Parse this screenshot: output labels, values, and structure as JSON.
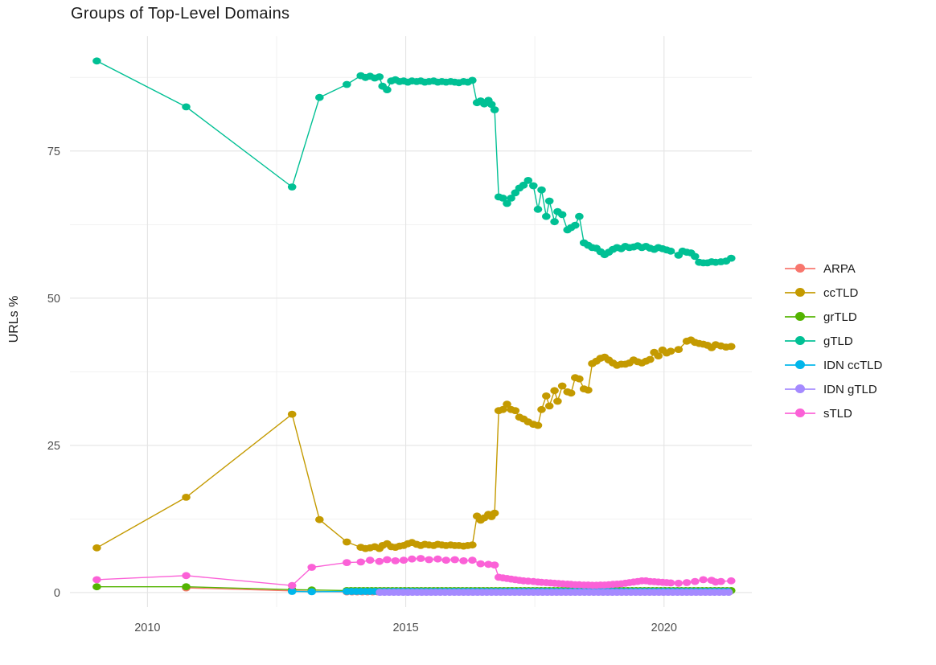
{
  "title": "Groups of Top-Level Domains",
  "legend": {
    "items": [
      {
        "key": "arpa",
        "label": "ARPA",
        "color": "#F8766D"
      },
      {
        "key": "cctld",
        "label": "ccTLD",
        "color": "#C49A00"
      },
      {
        "key": "grtld",
        "label": "grTLD",
        "color": "#53B400"
      },
      {
        "key": "gtld",
        "label": "gTLD",
        "color": "#00C094"
      },
      {
        "key": "idn-cctld",
        "label": "IDN ccTLD",
        "color": "#00B6EB"
      },
      {
        "key": "idn-gtld",
        "label": "IDN gTLD",
        "color": "#A58AFF"
      },
      {
        "key": "stld",
        "label": "sTLD",
        "color": "#FB61D7"
      }
    ]
  },
  "chart_data": {
    "type": "line",
    "title": "Groups of Top-Level Domains",
    "xlabel": "",
    "ylabel": "URLs %",
    "grid": true,
    "legend_position": "right",
    "x_range": [
      2008.5,
      2021.7
    ],
    "y_range": [
      -2.46,
      94.5
    ],
    "x_ticks": [
      {
        "v": 2010,
        "label": "2010"
      },
      {
        "v": 2015,
        "label": "2015"
      },
      {
        "v": 2020,
        "label": "2020"
      }
    ],
    "x_minor": [
      2012.5,
      2017.5
    ],
    "y_ticks": [
      {
        "v": 0,
        "label": "0"
      },
      {
        "v": 25,
        "label": "25"
      },
      {
        "v": 50,
        "label": "50"
      },
      {
        "v": 75,
        "label": "75"
      }
    ],
    "y_minor": [
      12.5,
      37.5,
      62.5,
      87.5
    ],
    "grid_major_color": "#e4e4e4",
    "grid_minor_color": "#f1f1f1",
    "tick_label_color": "#4d4d4d",
    "series": [
      {
        "name": "ARPA",
        "color": "#F8766D",
        "points": [
          [
            2010.75,
            0.8
          ],
          [
            2012.8,
            0.3
          ],
          [
            2013.18,
            0.2
          ]
        ],
        "runs": [
          {
            "from": 2013.86,
            "to": 2021.3,
            "step": 0.1,
            "value": 0.12
          }
        ]
      },
      {
        "name": "ccTLD",
        "color": "#C49A00",
        "points": [
          [
            2009.02,
            7.6
          ],
          [
            2010.75,
            16.2
          ],
          [
            2012.8,
            30.3
          ],
          [
            2013.33,
            12.4
          ],
          [
            2013.86,
            8.6
          ],
          [
            2014.13,
            7.7
          ],
          [
            2014.22,
            7.5
          ],
          [
            2014.31,
            7.6
          ],
          [
            2014.4,
            7.8
          ],
          [
            2014.49,
            7.5
          ],
          [
            2014.55,
            8.0
          ],
          [
            2014.64,
            8.3
          ],
          [
            2014.72,
            7.8
          ],
          [
            2014.8,
            7.7
          ],
          [
            2014.88,
            7.9
          ],
          [
            2014.96,
            8.0
          ],
          [
            2015.04,
            8.3
          ],
          [
            2015.12,
            8.5
          ],
          [
            2015.21,
            8.2
          ],
          [
            2015.29,
            8.0
          ],
          [
            2015.37,
            8.2
          ],
          [
            2015.45,
            8.1
          ],
          [
            2015.54,
            8.0
          ],
          [
            2015.62,
            8.2
          ],
          [
            2015.7,
            8.1
          ],
          [
            2015.78,
            8.0
          ],
          [
            2015.87,
            8.1
          ],
          [
            2015.95,
            8.0
          ],
          [
            2016.03,
            8.0
          ],
          [
            2016.12,
            7.9
          ],
          [
            2016.2,
            8.0
          ],
          [
            2016.29,
            8.1
          ],
          [
            2016.38,
            13.0
          ],
          [
            2016.45,
            12.3
          ],
          [
            2016.52,
            12.7
          ],
          [
            2016.6,
            13.3
          ],
          [
            2016.66,
            12.9
          ],
          [
            2016.72,
            13.5
          ],
          [
            2016.8,
            30.9
          ],
          [
            2016.88,
            31.1
          ],
          [
            2016.96,
            32.0
          ],
          [
            2017.04,
            31.1
          ],
          [
            2017.12,
            30.9
          ],
          [
            2017.2,
            29.8
          ],
          [
            2017.28,
            29.5
          ],
          [
            2017.37,
            29.0
          ],
          [
            2017.47,
            28.6
          ],
          [
            2017.56,
            28.4
          ],
          [
            2017.63,
            31.1
          ],
          [
            2017.72,
            33.4
          ],
          [
            2017.78,
            31.7
          ],
          [
            2017.88,
            34.3
          ],
          [
            2017.94,
            32.5
          ],
          [
            2018.03,
            35.1
          ],
          [
            2018.13,
            34.1
          ],
          [
            2018.2,
            33.9
          ],
          [
            2018.28,
            36.5
          ],
          [
            2018.36,
            36.3
          ],
          [
            2018.45,
            34.6
          ],
          [
            2018.53,
            34.4
          ],
          [
            2018.61,
            38.9
          ],
          [
            2018.69,
            39.3
          ],
          [
            2018.77,
            39.8
          ],
          [
            2018.85,
            40.0
          ],
          [
            2018.93,
            39.5
          ],
          [
            2019.01,
            39.0
          ],
          [
            2019.09,
            38.6
          ],
          [
            2019.17,
            38.8
          ],
          [
            2019.25,
            38.8
          ],
          [
            2019.33,
            39.0
          ],
          [
            2019.41,
            39.5
          ],
          [
            2019.49,
            39.2
          ],
          [
            2019.57,
            39.0
          ],
          [
            2019.65,
            39.3
          ],
          [
            2019.73,
            39.6
          ],
          [
            2019.81,
            40.8
          ],
          [
            2019.89,
            40.2
          ],
          [
            2019.97,
            41.2
          ],
          [
            2020.05,
            40.7
          ],
          [
            2020.13,
            41.0
          ],
          [
            2020.28,
            41.3
          ],
          [
            2020.44,
            42.7
          ],
          [
            2020.52,
            42.9
          ],
          [
            2020.6,
            42.5
          ],
          [
            2020.68,
            42.3
          ],
          [
            2020.76,
            42.2
          ],
          [
            2020.84,
            42.0
          ],
          [
            2020.92,
            41.6
          ],
          [
            2021.0,
            42.1
          ],
          [
            2021.1,
            41.9
          ],
          [
            2021.2,
            41.7
          ],
          [
            2021.3,
            41.8
          ]
        ]
      },
      {
        "name": "grTLD",
        "color": "#53B400",
        "points": [
          [
            2009.02,
            1.0
          ],
          [
            2010.75,
            1.0
          ],
          [
            2012.8,
            0.5
          ],
          [
            2013.18,
            0.45
          ]
        ],
        "runs": [
          {
            "from": 2013.86,
            "to": 2021.3,
            "step": 0.08,
            "value": 0.35
          }
        ]
      },
      {
        "name": "gTLD",
        "color": "#00C094",
        "points": [
          [
            2009.02,
            90.3
          ],
          [
            2010.75,
            82.5
          ],
          [
            2012.8,
            68.9
          ],
          [
            2013.33,
            84.1
          ],
          [
            2013.86,
            86.3
          ],
          [
            2014.13,
            87.8
          ],
          [
            2014.22,
            87.5
          ],
          [
            2014.31,
            87.7
          ],
          [
            2014.4,
            87.4
          ],
          [
            2014.49,
            87.6
          ],
          [
            2014.55,
            86.0
          ],
          [
            2014.64,
            85.4
          ],
          [
            2014.72,
            86.9
          ],
          [
            2014.8,
            87.1
          ],
          [
            2014.88,
            86.8
          ],
          [
            2014.96,
            86.9
          ],
          [
            2015.04,
            86.7
          ],
          [
            2015.12,
            86.9
          ],
          [
            2015.21,
            86.8
          ],
          [
            2015.29,
            86.9
          ],
          [
            2015.37,
            86.7
          ],
          [
            2015.45,
            86.8
          ],
          [
            2015.54,
            86.9
          ],
          [
            2015.62,
            86.7
          ],
          [
            2015.7,
            86.8
          ],
          [
            2015.78,
            86.7
          ],
          [
            2015.87,
            86.8
          ],
          [
            2015.95,
            86.7
          ],
          [
            2016.03,
            86.6
          ],
          [
            2016.12,
            86.8
          ],
          [
            2016.2,
            86.7
          ],
          [
            2016.29,
            87.0
          ],
          [
            2016.38,
            83.2
          ],
          [
            2016.45,
            83.5
          ],
          [
            2016.52,
            83.0
          ],
          [
            2016.6,
            83.6
          ],
          [
            2016.66,
            82.9
          ],
          [
            2016.72,
            82.0
          ],
          [
            2016.8,
            67.2
          ],
          [
            2016.88,
            67.0
          ],
          [
            2016.96,
            66.1
          ],
          [
            2017.04,
            67.0
          ],
          [
            2017.12,
            67.9
          ],
          [
            2017.2,
            68.7
          ],
          [
            2017.28,
            69.2
          ],
          [
            2017.37,
            70.0
          ],
          [
            2017.47,
            69.1
          ],
          [
            2017.56,
            65.1
          ],
          [
            2017.63,
            68.4
          ],
          [
            2017.72,
            63.9
          ],
          [
            2017.78,
            66.5
          ],
          [
            2017.88,
            63.0
          ],
          [
            2017.94,
            64.7
          ],
          [
            2018.03,
            64.2
          ],
          [
            2018.13,
            61.6
          ],
          [
            2018.2,
            62.0
          ],
          [
            2018.28,
            62.4
          ],
          [
            2018.36,
            63.9
          ],
          [
            2018.45,
            59.4
          ],
          [
            2018.53,
            59.0
          ],
          [
            2018.61,
            58.6
          ],
          [
            2018.69,
            58.5
          ],
          [
            2018.77,
            57.9
          ],
          [
            2018.85,
            57.4
          ],
          [
            2018.93,
            57.8
          ],
          [
            2019.01,
            58.3
          ],
          [
            2019.09,
            58.6
          ],
          [
            2019.17,
            58.4
          ],
          [
            2019.25,
            58.8
          ],
          [
            2019.33,
            58.6
          ],
          [
            2019.41,
            58.7
          ],
          [
            2019.49,
            58.9
          ],
          [
            2019.57,
            58.6
          ],
          [
            2019.65,
            58.8
          ],
          [
            2019.73,
            58.5
          ],
          [
            2019.81,
            58.3
          ],
          [
            2019.89,
            58.6
          ],
          [
            2019.97,
            58.4
          ],
          [
            2020.05,
            58.2
          ],
          [
            2020.13,
            58.0
          ],
          [
            2020.28,
            57.3
          ],
          [
            2020.36,
            58.0
          ],
          [
            2020.44,
            57.8
          ],
          [
            2020.52,
            57.7
          ],
          [
            2020.6,
            57.1
          ],
          [
            2020.68,
            56.1
          ],
          [
            2020.76,
            56.0
          ],
          [
            2020.84,
            56.0
          ],
          [
            2020.92,
            56.2
          ],
          [
            2021.0,
            56.1
          ],
          [
            2021.1,
            56.2
          ],
          [
            2021.2,
            56.3
          ],
          [
            2021.3,
            56.8
          ]
        ]
      },
      {
        "name": "IDN ccTLD",
        "color": "#00B6EB",
        "points": [
          [
            2012.8,
            0.2
          ],
          [
            2013.18,
            0.15
          ]
        ],
        "runs": [
          {
            "from": 2013.86,
            "to": 2021.3,
            "step": 0.09,
            "value": 0.2
          }
        ]
      },
      {
        "name": "IDN gTLD",
        "color": "#A58AFF",
        "points": [],
        "runs": [
          {
            "from": 2014.5,
            "to": 2021.3,
            "step": 0.09,
            "value": 0.05
          }
        ]
      },
      {
        "name": "sTLD",
        "color": "#FB61D7",
        "points": [
          [
            2009.02,
            2.2
          ],
          [
            2010.75,
            2.9
          ],
          [
            2012.8,
            1.2
          ],
          [
            2013.18,
            4.3
          ],
          [
            2013.86,
            5.1
          ],
          [
            2014.13,
            5.2
          ],
          [
            2014.31,
            5.5
          ],
          [
            2014.49,
            5.3
          ],
          [
            2014.64,
            5.6
          ],
          [
            2014.8,
            5.4
          ],
          [
            2014.96,
            5.5
          ],
          [
            2015.12,
            5.7
          ],
          [
            2015.29,
            5.8
          ],
          [
            2015.45,
            5.6
          ],
          [
            2015.62,
            5.7
          ],
          [
            2015.78,
            5.5
          ],
          [
            2015.95,
            5.6
          ],
          [
            2016.12,
            5.4
          ],
          [
            2016.29,
            5.5
          ],
          [
            2016.45,
            4.9
          ],
          [
            2016.6,
            4.8
          ],
          [
            2016.72,
            4.7
          ],
          [
            2016.8,
            2.6
          ],
          [
            2016.88,
            2.5
          ],
          [
            2016.96,
            2.4
          ],
          [
            2017.04,
            2.3
          ],
          [
            2017.12,
            2.2
          ],
          [
            2017.2,
            2.1
          ],
          [
            2017.28,
            2.0
          ],
          [
            2017.37,
            1.95
          ],
          [
            2017.47,
            1.9
          ],
          [
            2017.56,
            1.8
          ],
          [
            2017.63,
            1.75
          ],
          [
            2017.72,
            1.7
          ],
          [
            2017.8,
            1.65
          ],
          [
            2017.88,
            1.6
          ],
          [
            2017.96,
            1.55
          ],
          [
            2018.04,
            1.5
          ],
          [
            2018.13,
            1.45
          ],
          [
            2018.2,
            1.4
          ],
          [
            2018.28,
            1.35
          ],
          [
            2018.36,
            1.35
          ],
          [
            2018.45,
            1.3
          ],
          [
            2018.53,
            1.3
          ],
          [
            2018.61,
            1.25
          ],
          [
            2018.69,
            1.25
          ],
          [
            2018.77,
            1.3
          ],
          [
            2018.85,
            1.3
          ],
          [
            2018.93,
            1.35
          ],
          [
            2019.01,
            1.4
          ],
          [
            2019.09,
            1.45
          ],
          [
            2019.17,
            1.5
          ],
          [
            2019.25,
            1.6
          ],
          [
            2019.33,
            1.7
          ],
          [
            2019.41,
            1.8
          ],
          [
            2019.49,
            1.9
          ],
          [
            2019.57,
            2.0
          ],
          [
            2019.65,
            2.0
          ],
          [
            2019.73,
            1.9
          ],
          [
            2019.81,
            1.85
          ],
          [
            2019.89,
            1.8
          ],
          [
            2019.97,
            1.75
          ],
          [
            2020.05,
            1.7
          ],
          [
            2020.13,
            1.65
          ],
          [
            2020.28,
            1.6
          ],
          [
            2020.44,
            1.7
          ],
          [
            2020.6,
            1.9
          ],
          [
            2020.76,
            2.2
          ],
          [
            2020.92,
            2.1
          ],
          [
            2021.0,
            1.8
          ],
          [
            2021.1,
            1.9
          ],
          [
            2021.3,
            2.0
          ]
        ]
      }
    ]
  }
}
